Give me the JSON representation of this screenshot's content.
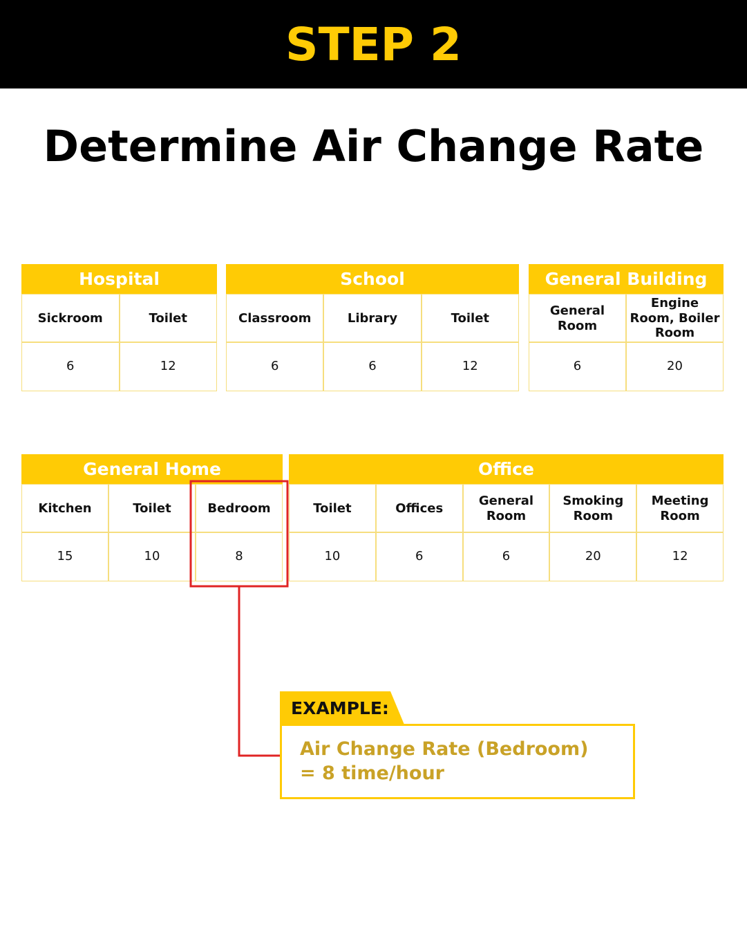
{
  "header": {
    "title": "STEP 2"
  },
  "title": "Determine Air Change Rate",
  "tables": [
    {
      "name": "Hospital",
      "columns": [
        {
          "label": "Sickroom",
          "value": 6
        },
        {
          "label": "Toilet",
          "value": 12
        }
      ]
    },
    {
      "name": "School",
      "columns": [
        {
          "label": "Classroom",
          "value": 6
        },
        {
          "label": "Library",
          "value": 6
        },
        {
          "label": "Toilet",
          "value": 12
        }
      ]
    },
    {
      "name": "General Building",
      "columns": [
        {
          "label": "General Room",
          "value": 6
        },
        {
          "label": "Engine Room, Boiler Room",
          "value": 20
        }
      ]
    },
    {
      "name": "General Home",
      "columns": [
        {
          "label": "Kitchen",
          "value": 15
        },
        {
          "label": "Toilet",
          "value": 10
        },
        {
          "label": "Bedroom",
          "value": 8
        }
      ]
    },
    {
      "name": "Office",
      "columns": [
        {
          "label": "Toilet",
          "value": 10
        },
        {
          "label": "Offices",
          "value": 6
        },
        {
          "label": "General Room",
          "value": 6
        },
        {
          "label": "Smoking Room",
          "value": 20
        },
        {
          "label": "Meeting Room",
          "value": 12
        }
      ]
    }
  ],
  "example": {
    "label": "EXAMPLE:",
    "lines": [
      "Air Change Rate (Bedroom)",
      "= 8 time/hour"
    ]
  }
}
